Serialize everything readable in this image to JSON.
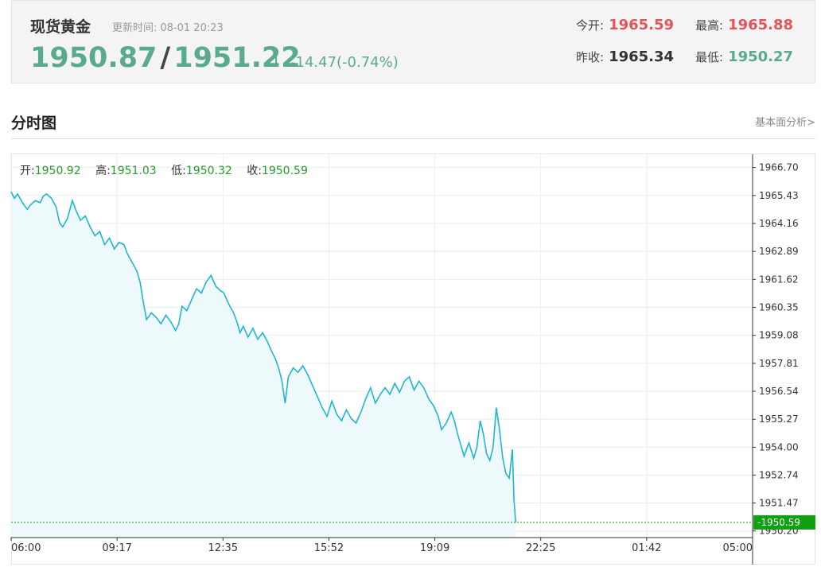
{
  "quote": {
    "name": "现货黄金",
    "time_label": "更新时间:",
    "time_value": "08-01 20:23",
    "bid": "1950.87",
    "separator": "/",
    "ask": "1951.22",
    "arrow": "↓",
    "change": "-14.47(-0.74%)",
    "open_label": "今开:",
    "open_value": "1965.59",
    "high_label": "最高:",
    "high_value": "1965.88",
    "prev_close_label": "昨收:",
    "prev_close_value": "1965.34",
    "low_label": "最低:",
    "low_value": "1950.27",
    "colors": {
      "up": "#e0565b",
      "down": "#5aaa8c"
    }
  },
  "section": {
    "title": "分时图",
    "link": "基本面分析>"
  },
  "ohlc": {
    "open_label": "开:",
    "open": "1950.92",
    "high_label": "高:",
    "high": "1951.03",
    "low_label": "低:",
    "low": "1950.32",
    "close_label": "收:",
    "close": "1950.59"
  },
  "chart_data": {
    "type": "line",
    "x_ticks": [
      "06:00",
      "09:17",
      "12:35",
      "15:52",
      "19:09",
      "22:25",
      "01:42",
      "05:00"
    ],
    "y_ticks": [
      "1966.70",
      "1965.43",
      "1964.16",
      "1962.89",
      "1961.62",
      "1960.35",
      "1959.08",
      "1957.81",
      "1956.54",
      "1955.27",
      "1954.00",
      "1952.74",
      "1951.47",
      "1950.20"
    ],
    "ylim": [
      1949.9,
      1967.3
    ],
    "x_range_hours": [
      0,
      23
    ],
    "current_price": "1950.59",
    "current_value": 1950.59,
    "line_color": "#1fb6d1",
    "fill_color": "#eef9fb",
    "current_color": "#10a010",
    "points": [
      [
        0.0,
        1965.6
      ],
      [
        0.1,
        1965.3
      ],
      [
        0.2,
        1965.5
      ],
      [
        0.35,
        1965.1
      ],
      [
        0.5,
        1964.8
      ],
      [
        0.6,
        1965.0
      ],
      [
        0.75,
        1965.2
      ],
      [
        0.9,
        1965.1
      ],
      [
        1.0,
        1965.4
      ],
      [
        1.1,
        1965.5
      ],
      [
        1.25,
        1965.3
      ],
      [
        1.4,
        1964.9
      ],
      [
        1.5,
        1964.2
      ],
      [
        1.6,
        1964.0
      ],
      [
        1.75,
        1964.4
      ],
      [
        1.9,
        1965.2
      ],
      [
        2.0,
        1964.8
      ],
      [
        2.15,
        1964.3
      ],
      [
        2.3,
        1964.5
      ],
      [
        2.45,
        1964.0
      ],
      [
        2.6,
        1963.6
      ],
      [
        2.75,
        1963.8
      ],
      [
        2.9,
        1963.2
      ],
      [
        3.05,
        1963.5
      ],
      [
        3.2,
        1963.0
      ],
      [
        3.35,
        1963.3
      ],
      [
        3.5,
        1963.2
      ],
      [
        3.6,
        1962.8
      ],
      [
        3.75,
        1962.4
      ],
      [
        3.9,
        1962.0
      ],
      [
        4.0,
        1961.5
      ],
      [
        4.1,
        1960.6
      ],
      [
        4.2,
        1959.8
      ],
      [
        4.35,
        1960.1
      ],
      [
        4.5,
        1959.9
      ],
      [
        4.65,
        1959.6
      ],
      [
        4.8,
        1960.0
      ],
      [
        4.95,
        1959.7
      ],
      [
        5.1,
        1959.3
      ],
      [
        5.2,
        1959.6
      ],
      [
        5.3,
        1960.4
      ],
      [
        5.45,
        1960.2
      ],
      [
        5.6,
        1960.7
      ],
      [
        5.75,
        1961.2
      ],
      [
        5.9,
        1961.0
      ],
      [
        6.05,
        1961.5
      ],
      [
        6.2,
        1961.8
      ],
      [
        6.35,
        1961.3
      ],
      [
        6.5,
        1961.1
      ],
      [
        6.6,
        1961.0
      ],
      [
        6.75,
        1960.5
      ],
      [
        6.9,
        1960.1
      ],
      [
        7.0,
        1959.7
      ],
      [
        7.1,
        1959.2
      ],
      [
        7.2,
        1959.5
      ],
      [
        7.35,
        1959.0
      ],
      [
        7.5,
        1959.4
      ],
      [
        7.65,
        1958.9
      ],
      [
        7.8,
        1959.2
      ],
      [
        7.95,
        1958.8
      ],
      [
        8.1,
        1958.3
      ],
      [
        8.2,
        1958.0
      ],
      [
        8.3,
        1957.6
      ],
      [
        8.4,
        1957.0
      ],
      [
        8.5,
        1956.0
      ],
      [
        8.6,
        1957.2
      ],
      [
        8.75,
        1957.6
      ],
      [
        8.9,
        1957.4
      ],
      [
        9.05,
        1957.7
      ],
      [
        9.2,
        1957.3
      ],
      [
        9.35,
        1956.8
      ],
      [
        9.5,
        1956.3
      ],
      [
        9.65,
        1955.8
      ],
      [
        9.8,
        1955.4
      ],
      [
        9.95,
        1956.1
      ],
      [
        10.1,
        1955.5
      ],
      [
        10.25,
        1955.2
      ],
      [
        10.4,
        1955.7
      ],
      [
        10.55,
        1955.3
      ],
      [
        10.7,
        1955.1
      ],
      [
        10.85,
        1955.6
      ],
      [
        11.0,
        1956.2
      ],
      [
        11.15,
        1956.7
      ],
      [
        11.3,
        1956.0
      ],
      [
        11.45,
        1956.4
      ],
      [
        11.6,
        1956.7
      ],
      [
        11.75,
        1956.4
      ],
      [
        11.9,
        1956.9
      ],
      [
        12.05,
        1956.5
      ],
      [
        12.2,
        1957.0
      ],
      [
        12.35,
        1957.2
      ],
      [
        12.5,
        1956.6
      ],
      [
        12.65,
        1957.0
      ],
      [
        12.8,
        1956.7
      ],
      [
        12.95,
        1956.2
      ],
      [
        13.1,
        1955.9
      ],
      [
        13.25,
        1955.4
      ],
      [
        13.35,
        1954.8
      ],
      [
        13.5,
        1955.1
      ],
      [
        13.65,
        1955.6
      ],
      [
        13.75,
        1955.2
      ],
      [
        13.85,
        1954.6
      ],
      [
        13.95,
        1954.1
      ],
      [
        14.05,
        1953.6
      ],
      [
        14.2,
        1954.2
      ],
      [
        14.35,
        1953.5
      ],
      [
        14.45,
        1954.0
      ],
      [
        14.55,
        1955.2
      ],
      [
        14.65,
        1954.6
      ],
      [
        14.75,
        1953.7
      ],
      [
        14.85,
        1953.4
      ],
      [
        14.95,
        1954.0
      ],
      [
        15.05,
        1955.8
      ],
      [
        15.15,
        1954.8
      ],
      [
        15.25,
        1953.5
      ],
      [
        15.35,
        1952.8
      ],
      [
        15.45,
        1952.6
      ],
      [
        15.55,
        1953.9
      ],
      [
        15.6,
        1951.6
      ],
      [
        15.65,
        1950.59
      ]
    ]
  }
}
